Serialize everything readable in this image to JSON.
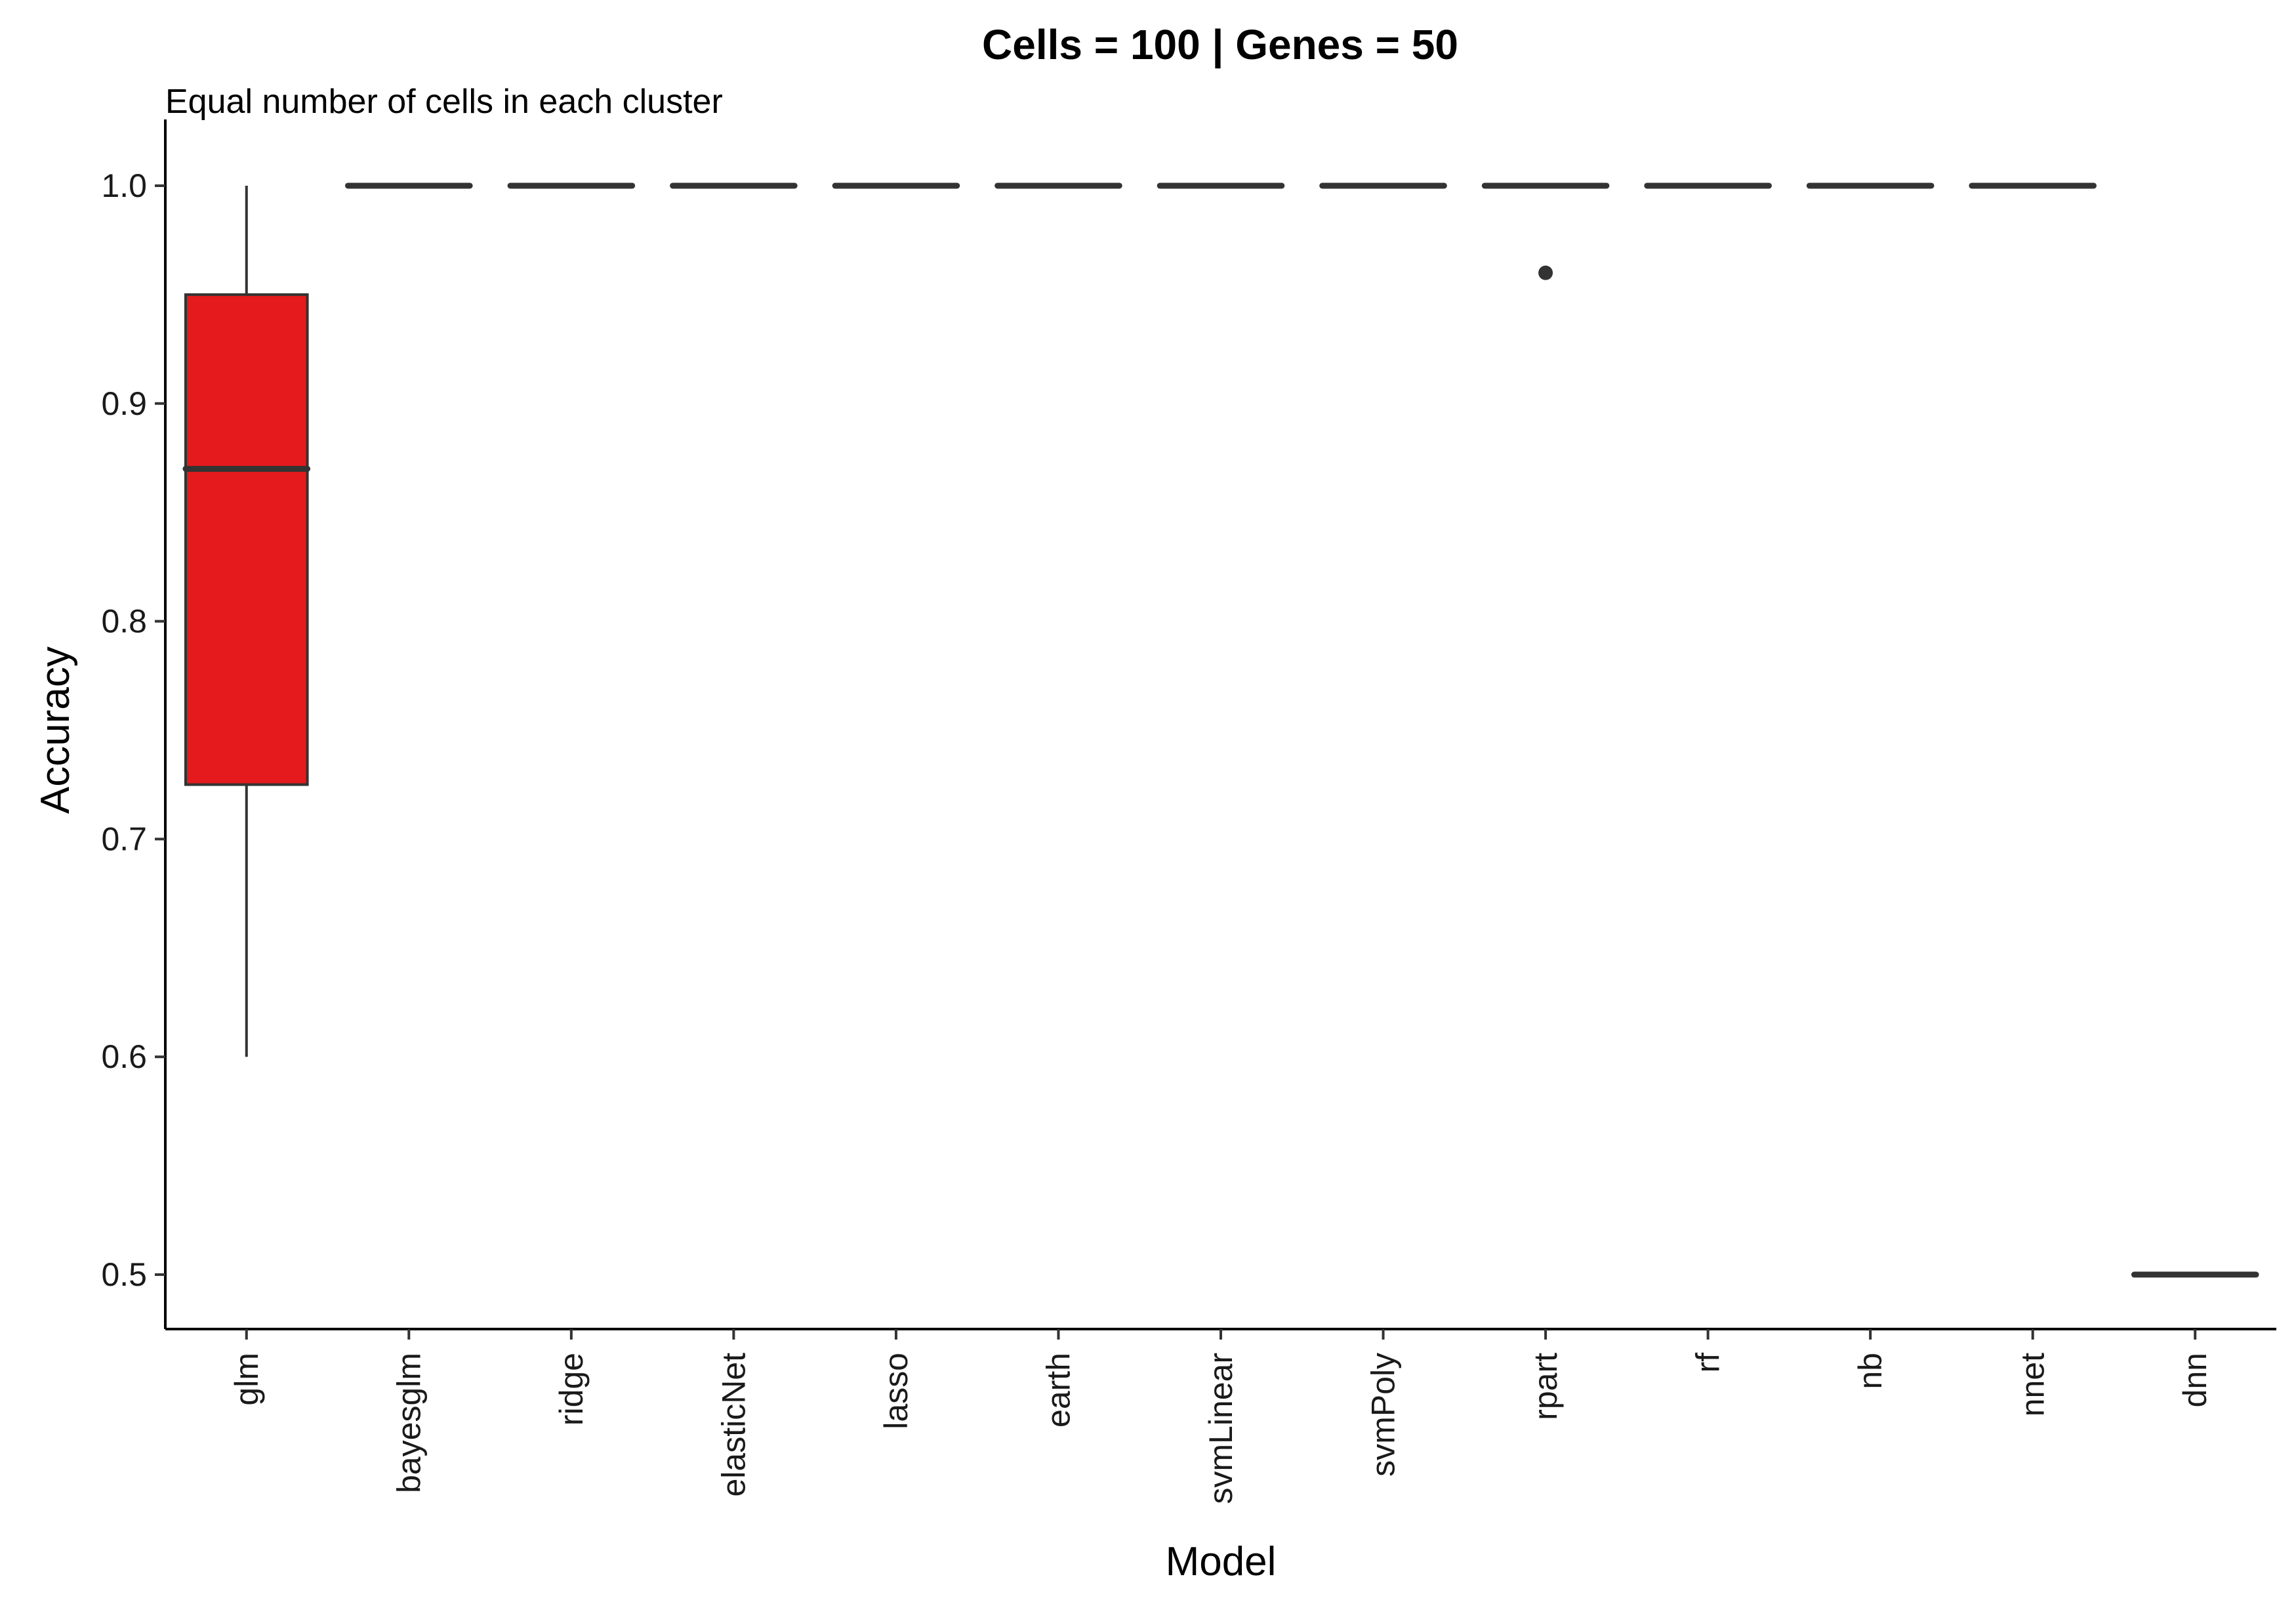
{
  "chart_data": {
    "type": "box",
    "title": "Cells = 100 | Genes = 50",
    "subtitle": "Equal number of cells in each cluster",
    "xlabel": "Model",
    "ylabel": "Accuracy",
    "ylim": [
      0.475,
      1.025
    ],
    "yticks": [
      0.5,
      0.6,
      0.7,
      0.8,
      0.9,
      1.0
    ],
    "ytick_labels": [
      "0.5",
      "0.6",
      "0.7",
      "0.8",
      "0.9",
      "1.0"
    ],
    "grid": false,
    "legend": "none",
    "highlight_color": "#e41a1c",
    "line_color": "#333333",
    "categories": [
      "glm",
      "bayesglm",
      "ridge",
      "elasticNet",
      "lasso",
      "earth",
      "svmLinear",
      "svmPoly",
      "rpart",
      "rf",
      "nb",
      "nnet",
      "dnn"
    ],
    "boxes": [
      {
        "category": "glm",
        "whisker_low": 0.6,
        "q1": 0.725,
        "median": 0.87,
        "q3": 0.95,
        "whisker_high": 1.0,
        "outliers": [],
        "highlight": true
      },
      {
        "category": "bayesglm",
        "whisker_low": 1.0,
        "q1": 1.0,
        "median": 1.0,
        "q3": 1.0,
        "whisker_high": 1.0,
        "outliers": []
      },
      {
        "category": "ridge",
        "whisker_low": 1.0,
        "q1": 1.0,
        "median": 1.0,
        "q3": 1.0,
        "whisker_high": 1.0,
        "outliers": []
      },
      {
        "category": "elasticNet",
        "whisker_low": 1.0,
        "q1": 1.0,
        "median": 1.0,
        "q3": 1.0,
        "whisker_high": 1.0,
        "outliers": []
      },
      {
        "category": "lasso",
        "whisker_low": 1.0,
        "q1": 1.0,
        "median": 1.0,
        "q3": 1.0,
        "whisker_high": 1.0,
        "outliers": []
      },
      {
        "category": "earth",
        "whisker_low": 1.0,
        "q1": 1.0,
        "median": 1.0,
        "q3": 1.0,
        "whisker_high": 1.0,
        "outliers": []
      },
      {
        "category": "svmLinear",
        "whisker_low": 1.0,
        "q1": 1.0,
        "median": 1.0,
        "q3": 1.0,
        "whisker_high": 1.0,
        "outliers": []
      },
      {
        "category": "svmPoly",
        "whisker_low": 1.0,
        "q1": 1.0,
        "median": 1.0,
        "q3": 1.0,
        "whisker_high": 1.0,
        "outliers": []
      },
      {
        "category": "rpart",
        "whisker_low": 1.0,
        "q1": 1.0,
        "median": 1.0,
        "q3": 1.0,
        "whisker_high": 1.0,
        "outliers": [
          0.96
        ]
      },
      {
        "category": "rf",
        "whisker_low": 1.0,
        "q1": 1.0,
        "median": 1.0,
        "q3": 1.0,
        "whisker_high": 1.0,
        "outliers": []
      },
      {
        "category": "nb",
        "whisker_low": 1.0,
        "q1": 1.0,
        "median": 1.0,
        "q3": 1.0,
        "whisker_high": 1.0,
        "outliers": []
      },
      {
        "category": "nnet",
        "whisker_low": 1.0,
        "q1": 1.0,
        "median": 1.0,
        "q3": 1.0,
        "whisker_high": 1.0,
        "outliers": []
      },
      {
        "category": "dnn",
        "whisker_low": 0.5,
        "q1": 0.5,
        "median": 0.5,
        "q3": 0.5,
        "whisker_high": 0.5,
        "outliers": []
      }
    ]
  }
}
